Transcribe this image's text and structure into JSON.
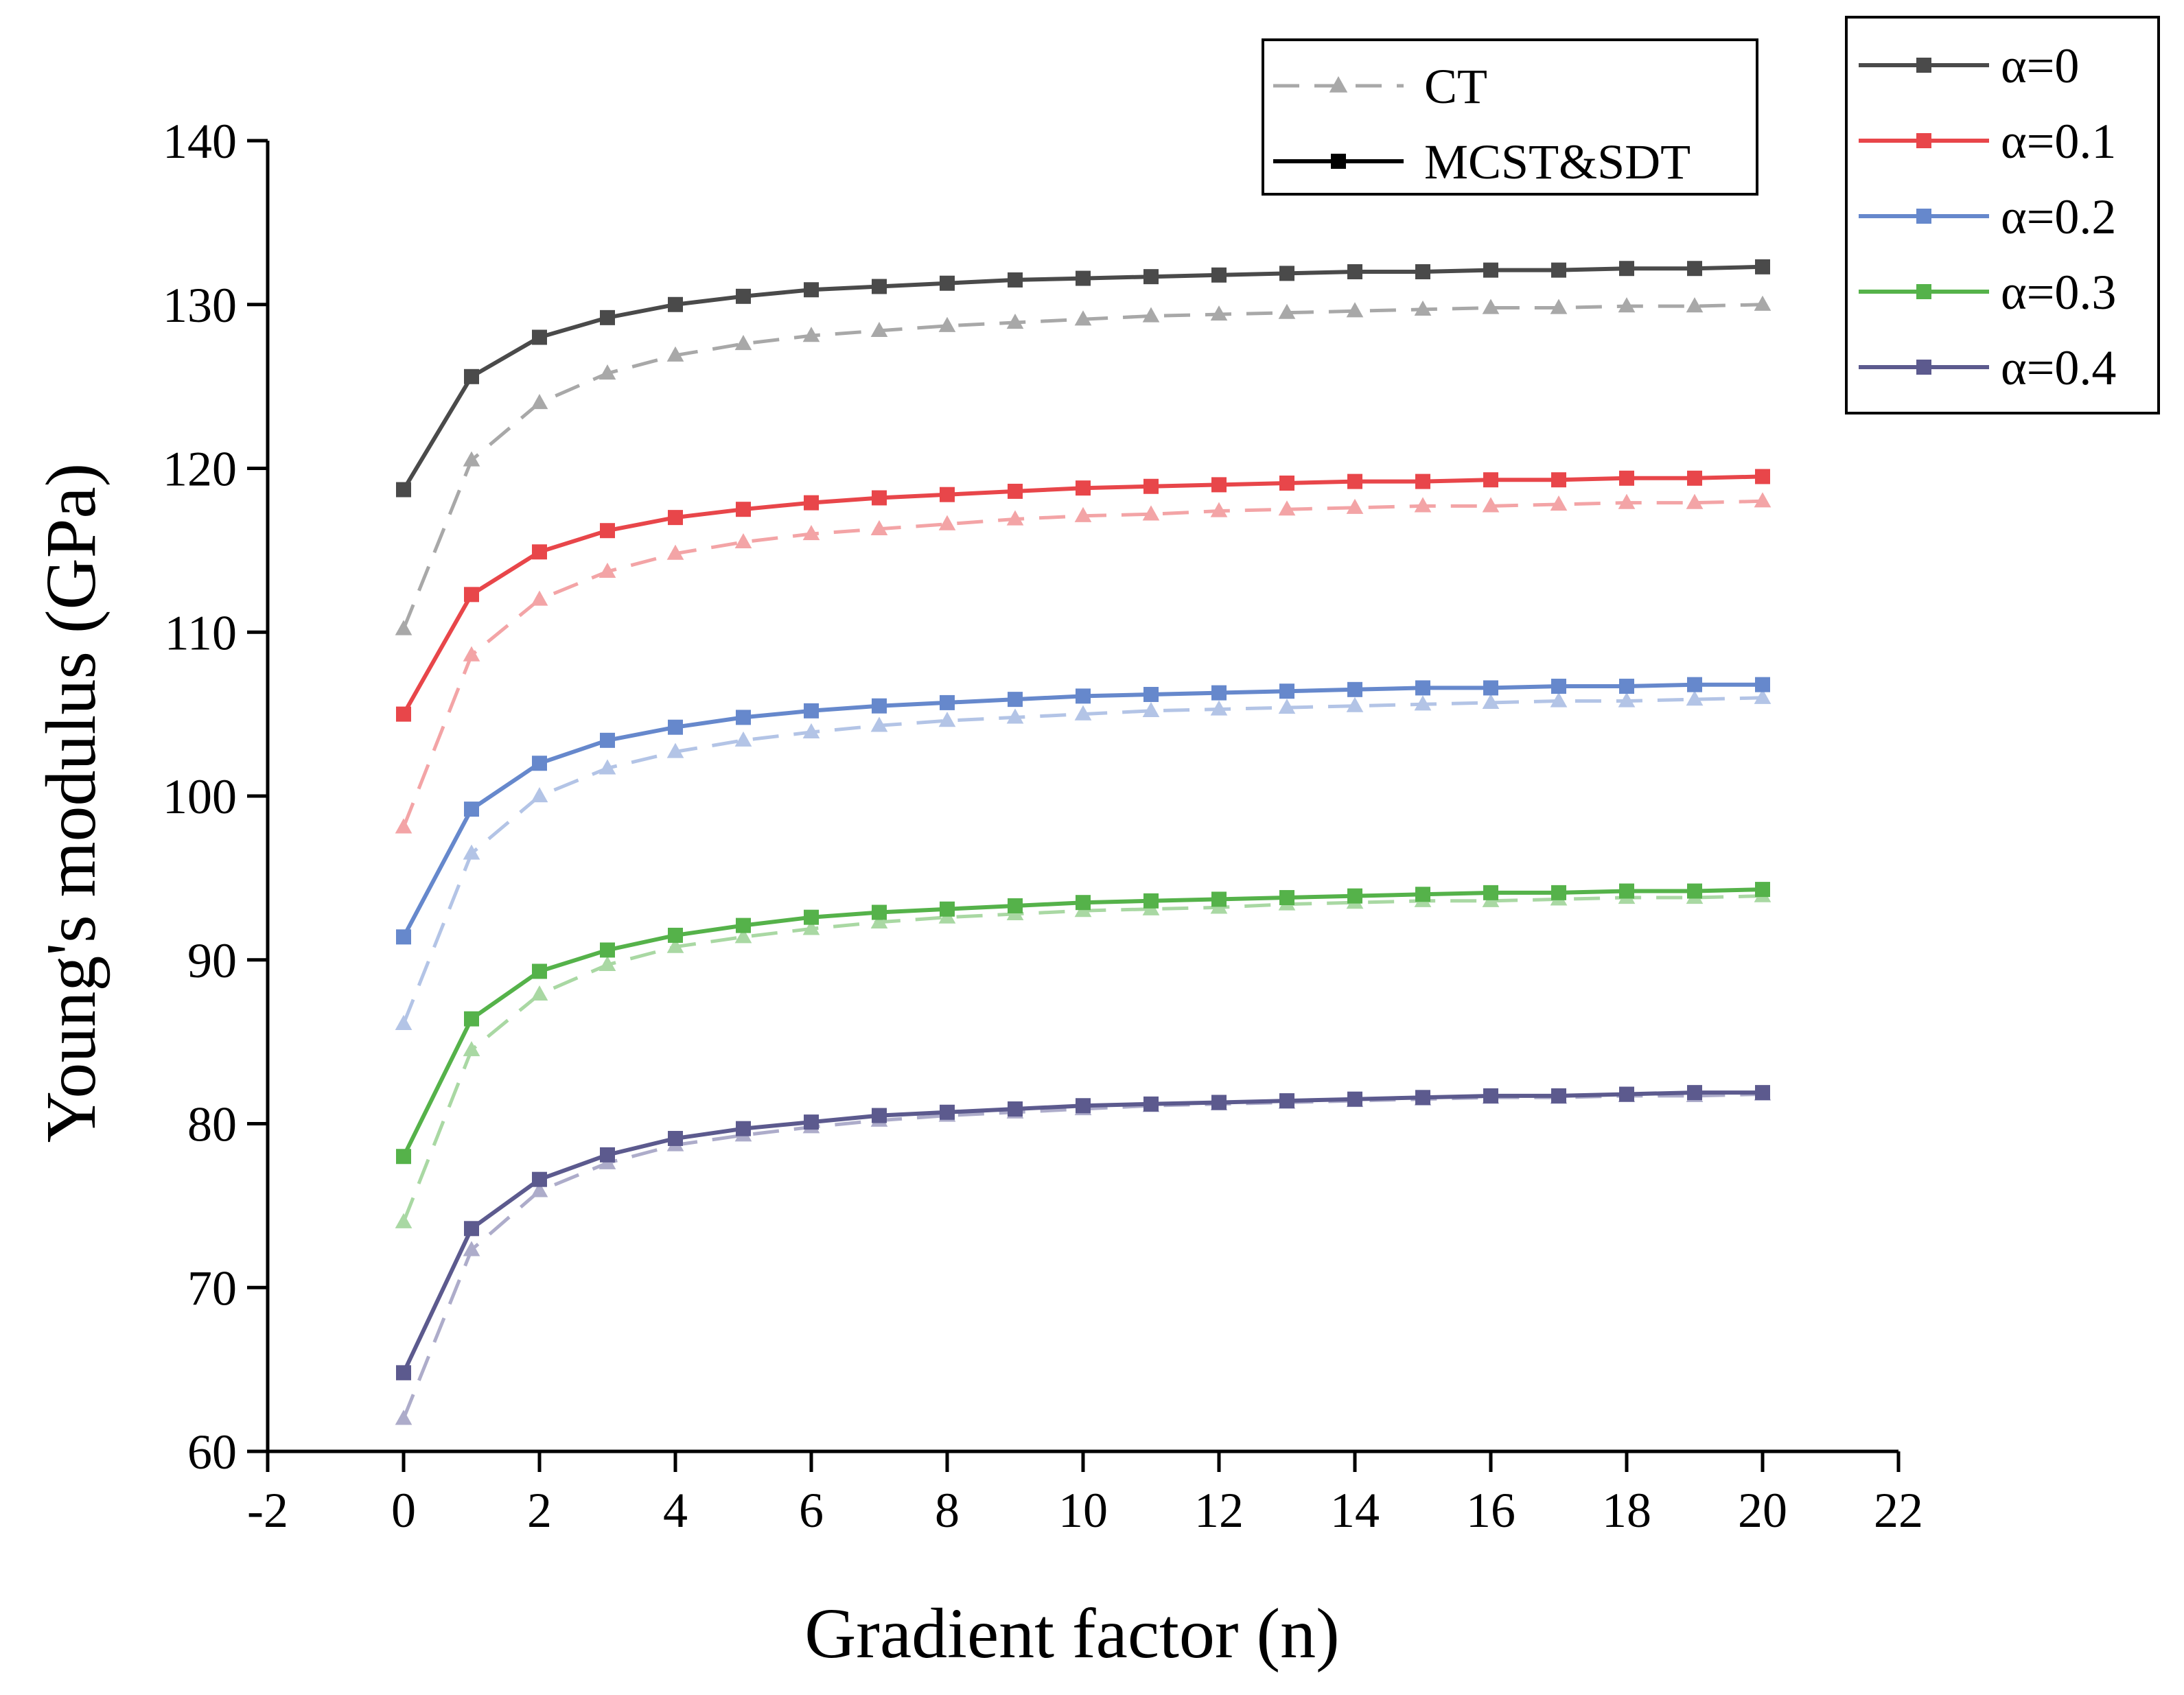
{
  "chart_data": {
    "type": "line",
    "title": "",
    "xlabel": "Gradient factor (n)",
    "ylabel": "Young's modulus (GPa)",
    "xlim": [
      -2,
      22
    ],
    "ylim": [
      60,
      140
    ],
    "xticks": [
      "-2",
      "0",
      "2",
      "4",
      "6",
      "8",
      "10",
      "12",
      "14",
      "16",
      "18",
      "20",
      "22"
    ],
    "yticks": [
      "60",
      "70",
      "80",
      "90",
      "100",
      "110",
      "120",
      "130",
      "140"
    ],
    "grid": false,
    "x": [
      0,
      1,
      2,
      3,
      4,
      5,
      6,
      7,
      8,
      9,
      10,
      11,
      12,
      13,
      14,
      15,
      16,
      17,
      18,
      19,
      20
    ],
    "style_legend": [
      {
        "label": "CT",
        "line": "dashed",
        "marker": "triangle",
        "color": "#8a8a8a"
      },
      {
        "label": "MCST&SDT",
        "line": "solid",
        "marker": "square",
        "color": "#000000"
      }
    ],
    "alpha_legend_position": "top-right",
    "style_legend_position": "top-center",
    "series": [
      {
        "name": "α=0",
        "color": "#4a4a4a",
        "ct_color": "#a8a8a8",
        "mcst": [
          118.7,
          125.6,
          128.0,
          129.2,
          130.0,
          130.5,
          130.9,
          131.1,
          131.3,
          131.5,
          131.6,
          131.7,
          131.8,
          131.9,
          132.0,
          132.0,
          132.1,
          132.1,
          132.2,
          132.2,
          132.3
        ],
        "ct": [
          110.2,
          120.5,
          124.0,
          125.8,
          126.9,
          127.6,
          128.1,
          128.4,
          128.7,
          128.9,
          129.1,
          129.3,
          129.4,
          129.5,
          129.6,
          129.7,
          129.8,
          129.8,
          129.9,
          129.9,
          130.0
        ]
      },
      {
        "name": "α=0.1",
        "color": "#e8464a",
        "ct_color": "#f3a4a6",
        "mcst": [
          105.0,
          112.3,
          114.9,
          116.2,
          117.0,
          117.5,
          117.9,
          118.2,
          118.4,
          118.6,
          118.8,
          118.9,
          119.0,
          119.1,
          119.2,
          119.2,
          119.3,
          119.3,
          119.4,
          119.4,
          119.5
        ],
        "ct": [
          98.1,
          108.6,
          112.0,
          113.7,
          114.8,
          115.5,
          116.0,
          116.3,
          116.6,
          116.9,
          117.1,
          117.2,
          117.4,
          117.5,
          117.6,
          117.7,
          117.7,
          117.8,
          117.9,
          117.9,
          118.0
        ]
      },
      {
        "name": "α=0.2",
        "color": "#6688cc",
        "ct_color": "#b3c4e6",
        "mcst": [
          91.4,
          99.2,
          102.0,
          103.4,
          104.2,
          104.8,
          105.2,
          105.5,
          105.7,
          105.9,
          106.1,
          106.2,
          106.3,
          106.4,
          106.5,
          106.6,
          106.6,
          106.7,
          106.7,
          106.8,
          106.8
        ],
        "ct": [
          86.1,
          96.5,
          100.0,
          101.7,
          102.7,
          103.4,
          103.9,
          104.3,
          104.6,
          104.8,
          105.0,
          105.2,
          105.3,
          105.4,
          105.5,
          105.6,
          105.7,
          105.8,
          105.8,
          105.9,
          106.0
        ]
      },
      {
        "name": "α=0.3",
        "color": "#55b24a",
        "ct_color": "#a9d8a3",
        "mcst": [
          78.0,
          86.4,
          89.3,
          90.6,
          91.5,
          92.1,
          92.6,
          92.9,
          93.1,
          93.3,
          93.5,
          93.6,
          93.7,
          93.8,
          93.9,
          94.0,
          94.1,
          94.1,
          94.2,
          94.2,
          94.3
        ],
        "ct": [
          74.0,
          84.5,
          87.9,
          89.7,
          90.8,
          91.4,
          91.9,
          92.3,
          92.6,
          92.8,
          93.0,
          93.1,
          93.2,
          93.4,
          93.5,
          93.6,
          93.6,
          93.7,
          93.8,
          93.8,
          93.9
        ]
      },
      {
        "name": "α=0.4",
        "color": "#5c5a8e",
        "ct_color": "#adacca",
        "mcst": [
          64.8,
          73.6,
          76.6,
          78.1,
          79.1,
          79.7,
          80.1,
          80.5,
          80.7,
          80.9,
          81.1,
          81.2,
          81.3,
          81.4,
          81.5,
          81.6,
          81.7,
          81.7,
          81.8,
          81.9,
          81.9
        ],
        "ct": [
          62.0,
          72.3,
          75.9,
          77.6,
          78.7,
          79.3,
          79.8,
          80.2,
          80.5,
          80.7,
          80.9,
          81.1,
          81.2,
          81.3,
          81.4,
          81.5,
          81.6,
          81.6,
          81.7,
          81.7,
          81.8
        ]
      }
    ]
  }
}
